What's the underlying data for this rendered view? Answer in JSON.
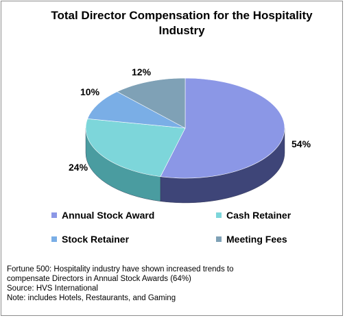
{
  "chart_data": {
    "type": "pie",
    "title": "Total Director Compensation for the Hospitality Industry",
    "slices": [
      {
        "name": "Annual Stock Award",
        "value": 54,
        "label": "54%",
        "color": "#8b97e6",
        "side_color": "#3e4578"
      },
      {
        "name": "Cash Retainer",
        "value": 24,
        "label": "24%",
        "color": "#7dd6da",
        "side_color": "#4a9ca0"
      },
      {
        "name": "Stock Retainer",
        "value": 10,
        "label": "10%",
        "color": "#7aaee6",
        "side_color": "#46709e"
      },
      {
        "name": "Meeting Fees",
        "value": 12,
        "label": "12%",
        "color": "#7fa1b6",
        "side_color": "#4f6b7c"
      }
    ],
    "legend_placement": "bottom"
  },
  "notes": [
    "Fortune 500: Hospitality industry have shown increased trends to",
    "compensate Directors in Annual Stock Awards (64%)",
    "Source: HVS International",
    "Note: includes Hotels, Restaurants, and Gaming"
  ]
}
